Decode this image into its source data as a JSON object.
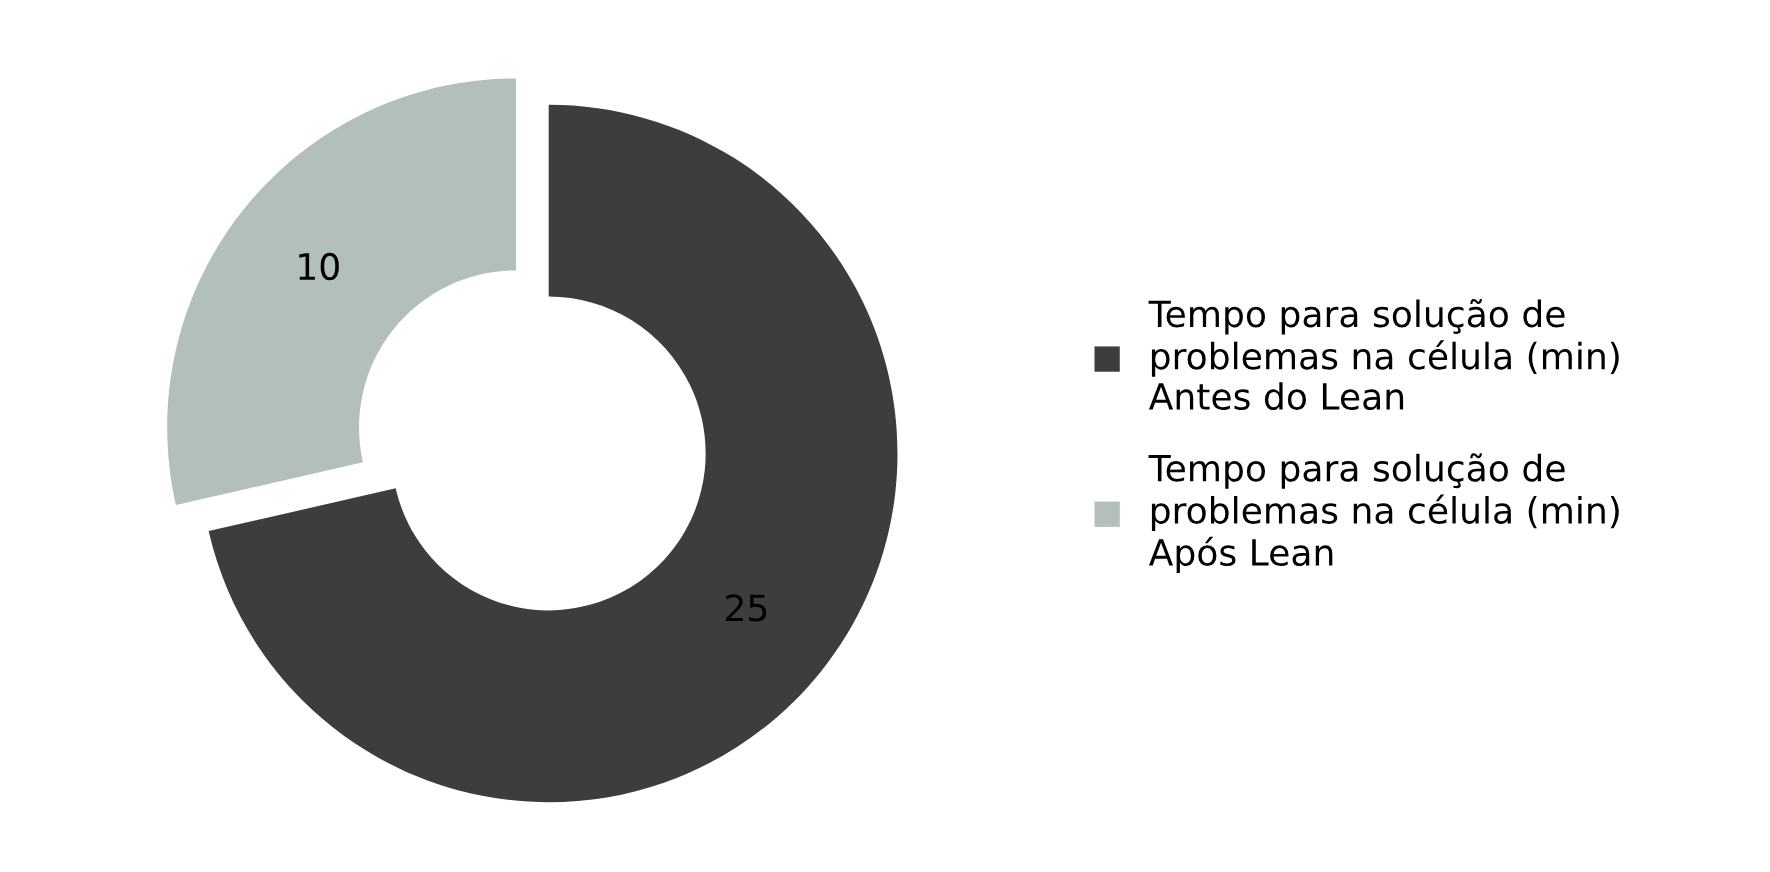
{
  "chart_data": {
    "type": "donut",
    "categories": [
      "Tempo para solução de\nproblemas na célula (min)\nAntes do Lean",
      "Tempo para solução de\nproblemas na célula (min)\nApós Lean"
    ],
    "values": [
      25,
      10
    ],
    "colors": [
      "#3b3e3d",
      "#b3bfbc"
    ],
    "data_labels": true,
    "legend": "right"
  }
}
